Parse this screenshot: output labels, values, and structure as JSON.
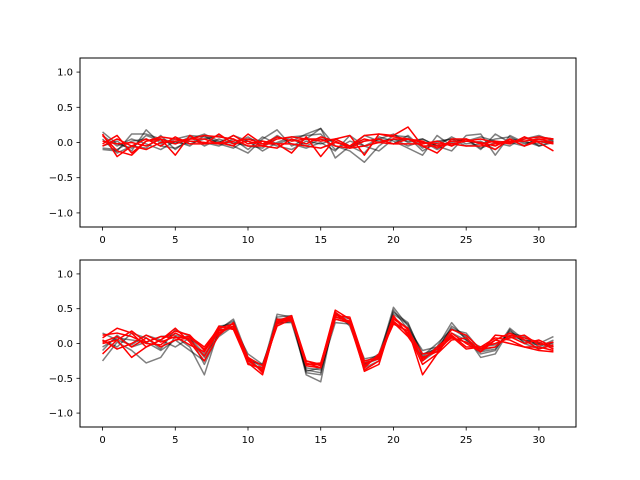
{
  "colors": {
    "gray": "#000000",
    "red": "#ff0000",
    "axes": "#000000",
    "background": "#ffffff"
  },
  "chart_data": [
    {
      "type": "line",
      "title": "",
      "xlabel": "",
      "ylabel": "",
      "xlim": [
        -1.55,
        32.55
      ],
      "ylim": [
        -1.2,
        1.2
      ],
      "xticks": [
        0,
        5,
        10,
        15,
        20,
        25,
        30
      ],
      "xtick_labels": [
        "0",
        "5",
        "10",
        "15",
        "20",
        "25",
        "30"
      ],
      "yticks": [
        -1.0,
        -0.5,
        0.0,
        0.5,
        1.0
      ],
      "ytick_labels": [
        "−1.0",
        "−0.5",
        "0.0",
        "0.5",
        "1.0"
      ],
      "grid": false,
      "x": [
        0,
        1,
        2,
        3,
        4,
        5,
        6,
        7,
        8,
        9,
        10,
        11,
        12,
        13,
        14,
        15,
        16,
        17,
        18,
        19,
        20,
        21,
        22,
        23,
        24,
        25,
        26,
        27,
        28,
        29,
        30,
        31
      ],
      "series": [
        {
          "color": "gray",
          "values": [
            -0.1,
            -0.12,
            0.12,
            0.12,
            0.05,
            0.0,
            -0.02,
            0.05,
            0.1,
            0.0,
            -0.05,
            -0.08,
            0.08,
            0.02,
            0.12,
            0.2,
            -0.05,
            -0.12,
            -0.28,
            -0.05,
            0.1,
            0.08,
            -0.12,
            0.0,
            0.05,
            0.02,
            0.08,
            0.02,
            0.0,
            0.05,
            0.1,
            0.02
          ]
        },
        {
          "color": "gray",
          "values": [
            0.05,
            -0.15,
            -0.05,
            -0.08,
            0.1,
            -0.1,
            0.05,
            0.12,
            0.02,
            -0.05,
            -0.15,
            0.05,
            0.18,
            -0.05,
            0.05,
            0.2,
            -0.22,
            -0.05,
            -0.15,
            0.08,
            0.02,
            -0.08,
            -0.18,
            0.1,
            -0.05,
            0.05,
            -0.1,
            0.12,
            0.0,
            -0.05,
            0.08,
            0.05
          ]
        },
        {
          "color": "gray",
          "values": [
            -0.05,
            0.02,
            -0.12,
            0.18,
            -0.02,
            0.05,
            0.1,
            0.08,
            0.0,
            0.1,
            0.02,
            -0.12,
            0.0,
            0.08,
            0.1,
            0.12,
            -0.1,
            0.02,
            -0.05,
            -0.12,
            0.05,
            0.02,
            0.05,
            -0.05,
            -0.12,
            0.1,
            0.12,
            -0.18,
            0.1,
            0.0,
            -0.02,
            0.05
          ]
        },
        {
          "color": "gray",
          "values": [
            0.1,
            -0.05,
            0.05,
            -0.02,
            -0.1,
            0.02,
            -0.05,
            0.1,
            -0.02,
            -0.08,
            0.05,
            0.02,
            -0.05,
            -0.1,
            0.02,
            -0.02,
            0.05,
            -0.05,
            0.02,
            0.05,
            -0.02,
            0.1,
            -0.08,
            0.02,
            0.05,
            -0.05,
            -0.02,
            0.05,
            0.08,
            -0.02,
            0.02,
            0.0
          ]
        },
        {
          "color": "gray",
          "values": [
            -0.08,
            -0.1,
            0.02,
            0.05,
            -0.05,
            -0.08,
            0.02,
            0.0,
            -0.05,
            0.05,
            -0.1,
            0.08,
            -0.02,
            0.05,
            -0.05,
            0.05,
            0.02,
            -0.08,
            0.1,
            0.02,
            0.05,
            -0.05,
            0.02,
            -0.1,
            0.0,
            0.05,
            -0.08,
            0.0,
            -0.05,
            0.08,
            -0.05,
            0.0
          ]
        },
        {
          "color": "gray",
          "values": [
            0.15,
            -0.02,
            -0.08,
            0.1,
            0.02,
            -0.02,
            0.08,
            -0.05,
            0.05,
            -0.02,
            0.08,
            -0.05,
            0.1,
            -0.02,
            -0.08,
            0.0,
            -0.12,
            0.1,
            -0.05,
            0.05,
            0.12,
            0.0,
            0.05,
            -0.05,
            0.08,
            -0.02,
            0.02,
            -0.1,
            0.05,
            0.02,
            -0.05,
            0.02
          ]
        },
        {
          "color": "red",
          "values": [
            0.12,
            -0.2,
            -0.05,
            -0.1,
            0.0,
            0.02,
            0.05,
            0.1,
            0.08,
            0.05,
            -0.05,
            -0.05,
            0.05,
            0.08,
            0.05,
            0.02,
            0.05,
            -0.05,
            0.1,
            0.12,
            0.1,
            0.22,
            -0.05,
            -0.05,
            -0.02,
            -0.05,
            -0.05,
            -0.02,
            0.0,
            0.05,
            0.08,
            0.05
          ]
        },
        {
          "color": "red",
          "values": [
            -0.02,
            0.1,
            -0.15,
            0.02,
            0.05,
            -0.18,
            0.1,
            -0.02,
            0.0,
            -0.05,
            0.12,
            -0.02,
            -0.02,
            -0.15,
            0.08,
            -0.2,
            0.05,
            0.1,
            -0.18,
            0.12,
            0.08,
            0.05,
            -0.05,
            -0.15,
            0.05,
            0.05,
            -0.02,
            -0.1,
            0.05,
            -0.05,
            0.02,
            -0.02
          ]
        },
        {
          "color": "red",
          "values": [
            0.1,
            -0.12,
            -0.18,
            0.02,
            0.08,
            0.05,
            0.02,
            0.0,
            -0.02,
            0.02,
            0.05,
            -0.02,
            0.08,
            0.02,
            0.05,
            0.05,
            -0.05,
            -0.08,
            -0.05,
            0.0,
            0.05,
            0.05,
            0.0,
            -0.02,
            -0.02,
            0.02,
            0.0,
            -0.05,
            0.05,
            -0.05,
            0.05,
            0.0
          ]
        },
        {
          "color": "red",
          "values": [
            -0.05,
            0.05,
            -0.05,
            0.05,
            -0.05,
            0.08,
            -0.02,
            -0.02,
            0.12,
            -0.02,
            0.02,
            -0.05,
            -0.08,
            0.05,
            -0.02,
            0.08,
            0.02,
            -0.08,
            0.02,
            0.05,
            -0.02,
            -0.02,
            -0.02,
            0.02,
            -0.05,
            0.05,
            -0.02,
            0.02,
            -0.02,
            0.08,
            0.0,
            -0.12
          ]
        },
        {
          "color": "red",
          "values": [
            0.02,
            -0.02,
            0.0,
            -0.05,
            0.05,
            -0.02,
            0.05,
            0.05,
            -0.02,
            0.1,
            -0.02,
            0.02,
            -0.02,
            -0.02,
            -0.05,
            -0.08,
            0.0,
            -0.05,
            0.05,
            0.0,
            -0.02,
            0.05,
            0.02,
            -0.08,
            0.02,
            0.02,
            0.05,
            0.0,
            0.02,
            0.02,
            0.05,
            0.05
          ]
        }
      ]
    },
    {
      "type": "line",
      "title": "",
      "xlabel": "",
      "ylabel": "",
      "xlim": [
        -1.55,
        32.55
      ],
      "ylim": [
        -1.2,
        1.2
      ],
      "xticks": [
        0,
        5,
        10,
        15,
        20,
        25,
        30
      ],
      "xtick_labels": [
        "0",
        "5",
        "10",
        "15",
        "20",
        "25",
        "30"
      ],
      "yticks": [
        -1.0,
        -0.5,
        0.0,
        0.5,
        1.0
      ],
      "ytick_labels": [
        "−1.0",
        "−0.5",
        "0.0",
        "0.5",
        "1.0"
      ],
      "grid": false,
      "x": [
        0,
        1,
        2,
        3,
        4,
        5,
        6,
        7,
        8,
        9,
        10,
        11,
        12,
        13,
        14,
        15,
        16,
        17,
        18,
        19,
        20,
        21,
        22,
        23,
        24,
        25,
        26,
        27,
        28,
        29,
        30,
        31
      ],
      "series": [
        {
          "color": "gray",
          "values": [
            -0.25,
            0.02,
            -0.1,
            -0.28,
            -0.2,
            0.1,
            -0.05,
            -0.45,
            0.2,
            0.35,
            -0.2,
            -0.35,
            0.42,
            0.38,
            -0.45,
            -0.55,
            0.45,
            0.25,
            -0.3,
            -0.2,
            0.52,
            0.25,
            -0.2,
            -0.05,
            0.3,
            0.05,
            -0.15,
            -0.1,
            0.22,
            0.05,
            0.0,
            0.1
          ]
        },
        {
          "color": "gray",
          "values": [
            -0.1,
            0.12,
            -0.05,
            0.02,
            0.1,
            0.12,
            0.05,
            -0.2,
            0.25,
            0.28,
            -0.25,
            -0.3,
            0.3,
            0.3,
            -0.4,
            -0.35,
            0.35,
            0.3,
            -0.28,
            -0.15,
            0.45,
            0.3,
            -0.18,
            0.0,
            0.2,
            0.15,
            -0.1,
            -0.05,
            0.15,
            0.1,
            -0.05,
            0.05
          ]
        },
        {
          "color": "gray",
          "values": [
            0.05,
            -0.05,
            0.15,
            0.08,
            -0.08,
            0.2,
            0.1,
            -0.3,
            0.15,
            0.3,
            -0.22,
            -0.4,
            0.38,
            0.4,
            -0.42,
            -0.45,
            0.42,
            0.35,
            -0.35,
            -0.25,
            0.48,
            0.2,
            -0.25,
            -0.1,
            0.25,
            0.1,
            -0.2,
            -0.15,
            0.2,
            0.0,
            -0.08,
            0.02
          ]
        },
        {
          "color": "gray",
          "values": [
            0.15,
            0.05,
            -0.02,
            0.12,
            0.05,
            -0.05,
            0.08,
            -0.15,
            0.1,
            0.25,
            -0.15,
            -0.3,
            0.28,
            0.32,
            -0.35,
            -0.38,
            0.3,
            0.28,
            -0.22,
            -0.18,
            0.35,
            0.22,
            -0.1,
            -0.05,
            0.15,
            0.05,
            -0.05,
            -0.02,
            0.1,
            0.05,
            0.0,
            -0.05
          ]
        },
        {
          "color": "gray",
          "values": [
            -0.05,
            0.08,
            0.05,
            0.02,
            -0.1,
            0.05,
            -0.1,
            -0.25,
            0.22,
            0.32,
            -0.28,
            -0.38,
            0.35,
            0.36,
            -0.38,
            -0.42,
            0.38,
            0.32,
            -0.3,
            -0.22,
            0.42,
            0.28,
            -0.15,
            -0.08,
            0.22,
            0.08,
            -0.12,
            -0.08,
            0.18,
            0.02,
            -0.02,
            0.0
          ]
        },
        {
          "color": "red",
          "values": [
            0.08,
            0.22,
            0.15,
            -0.05,
            0.05,
            0.22,
            0.02,
            -0.25,
            0.12,
            0.3,
            -0.2,
            -0.42,
            0.3,
            0.38,
            -0.3,
            -0.3,
            0.48,
            0.35,
            -0.4,
            -0.3,
            0.38,
            0.2,
            -0.45,
            -0.15,
            0.15,
            0.0,
            -0.12,
            0.12,
            0.1,
            0.0,
            0.05,
            -0.05
          ]
        },
        {
          "color": "red",
          "values": [
            0.0,
            0.05,
            -0.2,
            -0.05,
            0.05,
            0.18,
            0.12,
            -0.1,
            0.25,
            0.2,
            -0.28,
            -0.45,
            0.32,
            0.4,
            -0.25,
            -0.32,
            0.45,
            0.3,
            -0.35,
            -0.15,
            0.3,
            0.1,
            -0.2,
            -0.12,
            0.2,
            0.12,
            -0.08,
            0.05,
            0.0,
            -0.05,
            -0.1,
            -0.12
          ]
        },
        {
          "color": "red",
          "values": [
            0.12,
            0.15,
            0.1,
            0.0,
            -0.02,
            0.15,
            0.05,
            -0.18,
            0.18,
            0.25,
            -0.3,
            -0.35,
            0.25,
            0.35,
            -0.28,
            -0.35,
            0.4,
            0.38,
            -0.25,
            -0.2,
            0.35,
            0.22,
            -0.25,
            -0.05,
            0.12,
            -0.05,
            -0.05,
            0.0,
            0.08,
            0.12,
            -0.02,
            0.02
          ]
        },
        {
          "color": "red",
          "values": [
            -0.15,
            0.05,
            0.18,
            0.02,
            0.1,
            0.08,
            0.1,
            -0.05,
            0.22,
            0.28,
            -0.22,
            -0.4,
            0.28,
            0.38,
            -0.3,
            -0.28,
            0.42,
            0.28,
            -0.38,
            -0.25,
            0.32,
            0.15,
            -0.3,
            -0.15,
            0.05,
            0.08,
            -0.12,
            0.05,
            0.15,
            0.05,
            -0.08,
            -0.02
          ]
        },
        {
          "color": "red",
          "values": [
            0.05,
            -0.08,
            0.0,
            0.12,
            0.02,
            0.1,
            -0.02,
            -0.12,
            0.2,
            0.22,
            -0.25,
            -0.38,
            0.35,
            0.32,
            -0.25,
            -0.3,
            0.38,
            0.32,
            -0.32,
            -0.18,
            0.28,
            0.18,
            -0.15,
            -0.12,
            0.1,
            -0.08,
            -0.05,
            0.08,
            0.05,
            -0.05,
            -0.05,
            -0.1
          ]
        },
        {
          "color": "red",
          "values": [
            0.02,
            0.1,
            -0.05,
            0.08,
            -0.05,
            0.05,
            0.08,
            -0.08,
            0.15,
            0.25,
            -0.2,
            -0.32,
            0.3,
            0.35,
            -0.32,
            -0.35,
            0.35,
            0.3,
            -0.28,
            -0.22,
            0.4,
            0.12,
            -0.22,
            -0.08,
            0.08,
            0.02,
            -0.08,
            -0.05,
            0.12,
            0.08,
            0.02,
            -0.08
          ]
        }
      ]
    }
  ]
}
